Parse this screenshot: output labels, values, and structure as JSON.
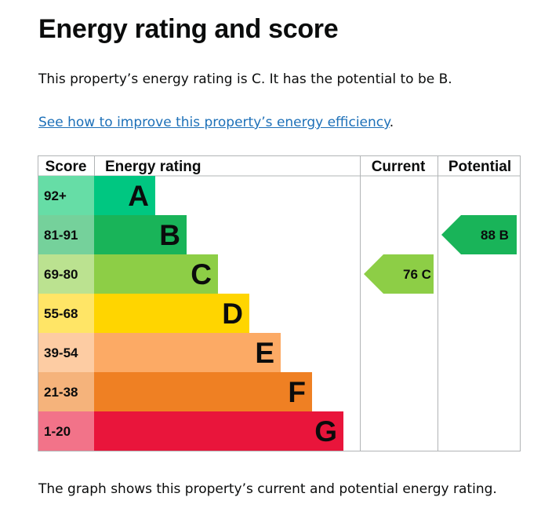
{
  "page": {
    "title": "Energy rating and score",
    "summary": "This property’s energy rating is C. It has the potential to be B.",
    "link_text": "See how to improve this property’s energy efficiency",
    "link_suffix": ".",
    "caption": "The graph shows this property’s current and potential energy rating."
  },
  "chart_data": {
    "type": "table",
    "columns": [
      "Score",
      "Energy rating",
      "Current",
      "Potential"
    ],
    "bands": [
      {
        "score": "92+",
        "letter": "A",
        "color": "#00c781",
        "score_bg": "#66dda6"
      },
      {
        "score": "81-91",
        "letter": "B",
        "color": "#19b459",
        "score_bg": "#75d19b"
      },
      {
        "score": "69-80",
        "letter": "C",
        "color": "#8dce46",
        "score_bg": "#bbe290"
      },
      {
        "score": "55-68",
        "letter": "D",
        "color": "#ffd500",
        "score_bg": "#ffe566"
      },
      {
        "score": "39-54",
        "letter": "E",
        "color": "#fcaa65",
        "score_bg": "#fdcca3"
      },
      {
        "score": "21-38",
        "letter": "F",
        "color": "#ef8023",
        "score_bg": "#f5b37b"
      },
      {
        "score": "1-20",
        "letter": "G",
        "color": "#e9153b",
        "score_bg": "#f27389"
      }
    ],
    "current": {
      "label": "76 C",
      "score": 76,
      "band": "C",
      "color": "#8dce46"
    },
    "potential": {
      "label": "88 B",
      "score": 88,
      "band": "B",
      "color": "#19b459"
    }
  }
}
